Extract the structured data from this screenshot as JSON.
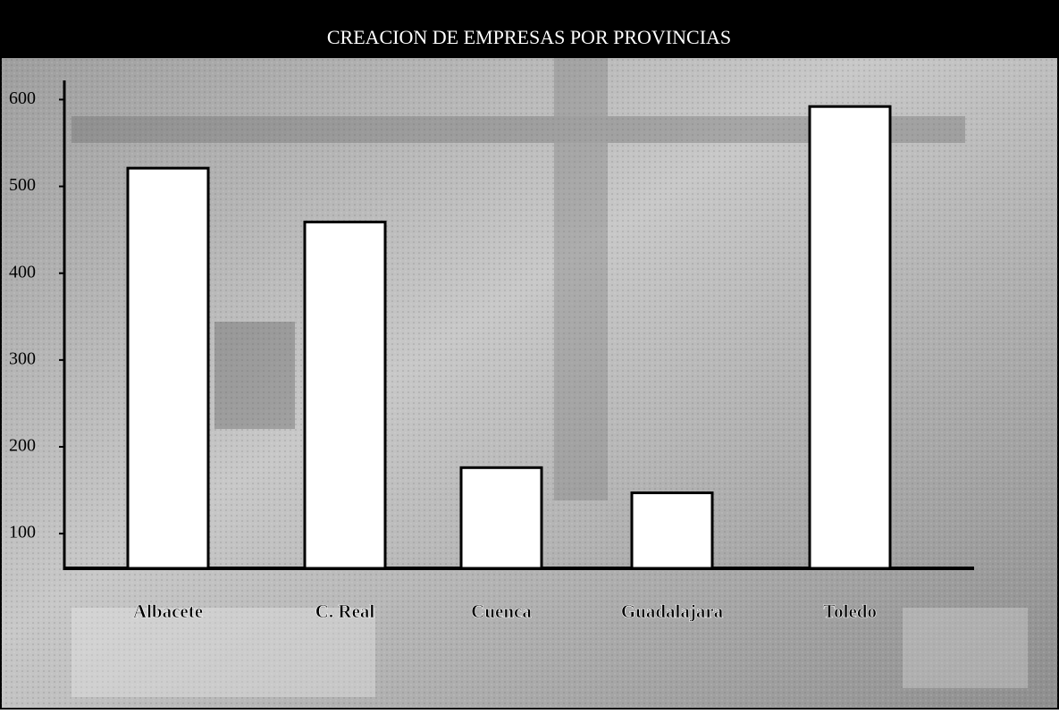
{
  "chart_data": {
    "type": "bar",
    "title": "CREACION DE EMPRESAS POR PROVINCIAS",
    "categories": [
      "Albacete",
      "C. Real",
      "Cuenca",
      "Guadalajara",
      "Toledo"
    ],
    "values": [
      521,
      459,
      176,
      147,
      592
    ],
    "color": "#ffffff",
    "ylim": [
      60,
      620
    ],
    "yticks": [
      100,
      200,
      300,
      400,
      500,
      600
    ],
    "grid": false
  }
}
